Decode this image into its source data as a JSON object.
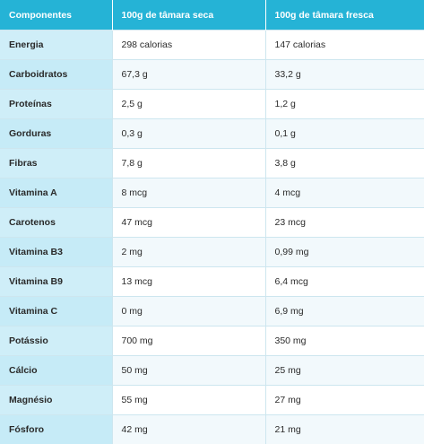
{
  "colors": {
    "header_bg": "#25b3d6",
    "label_bg": "#cfeef8",
    "row_alt_bg": "#f2f9fc"
  },
  "table": {
    "headers": [
      "Componentes",
      "100g de tâmara seca",
      "100g de tâmara fresca"
    ],
    "rows": [
      [
        "Energia",
        "298 calorias",
        "147 calorias"
      ],
      [
        "Carboidratos",
        "67,3 g",
        "33,2 g"
      ],
      [
        "Proteínas",
        "2,5 g",
        "1,2 g"
      ],
      [
        "Gorduras",
        "0,3 g",
        "0,1 g"
      ],
      [
        "Fibras",
        "7,8 g",
        "3,8 g"
      ],
      [
        "Vitamina A",
        "8 mcg",
        "4 mcg"
      ],
      [
        "Carotenos",
        "47 mcg",
        "23 mcg"
      ],
      [
        "Vitamina B3",
        "2 mg",
        "0,99 mg"
      ],
      [
        "Vitamina B9",
        "13 mcg",
        "6,4 mcg"
      ],
      [
        "Vitamina C",
        "0 mg",
        "6,9 mg"
      ],
      [
        "Potássio",
        "700 mg",
        "350 mg"
      ],
      [
        "Cálcio",
        "50 mg",
        "25 mg"
      ],
      [
        "Magnésio",
        "55 mg",
        "27 mg"
      ],
      [
        "Fósforo",
        "42 mg",
        "21 mg"
      ]
    ]
  }
}
